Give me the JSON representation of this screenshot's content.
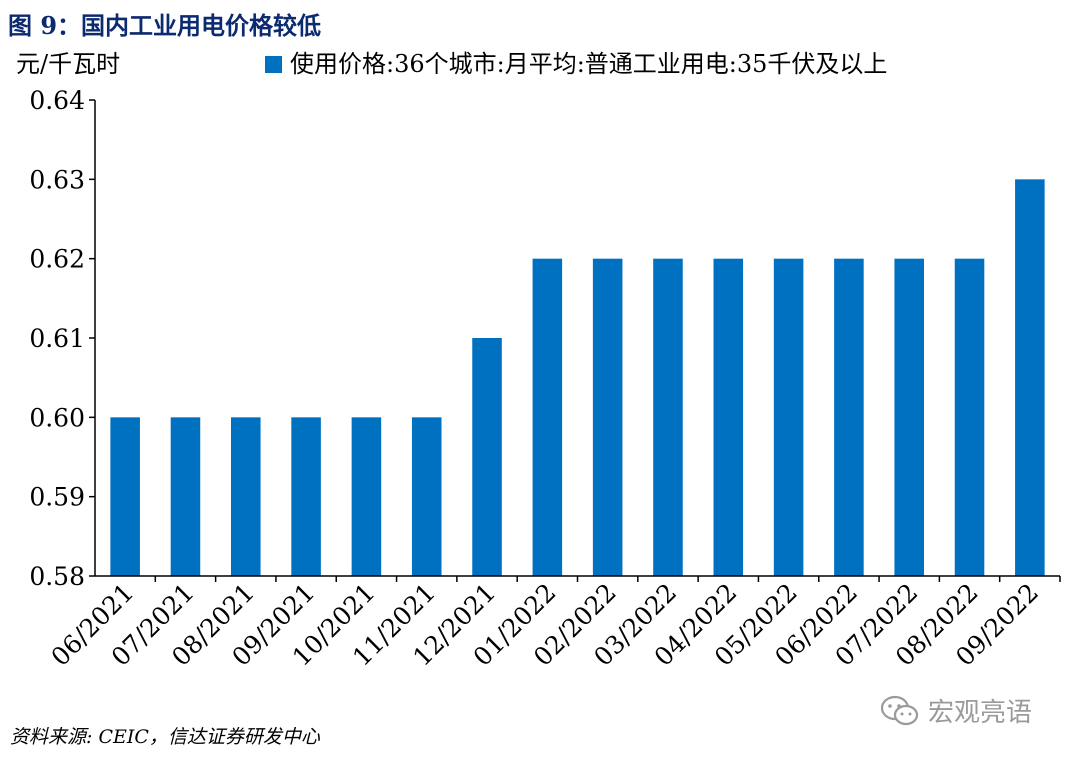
{
  "figure_title": "图 9：国内工业用电价格较低",
  "source": "资料来源: CEIC，信达证券研发中心",
  "watermark": "宏观亮语",
  "colors": {
    "bar": "#0070c0",
    "title": "#0b2a6f",
    "axis": "#000000"
  },
  "chart_data": {
    "type": "bar",
    "title": "",
    "ylabel": "元/千瓦时",
    "xlabel": "",
    "ylim": [
      0.58,
      0.64
    ],
    "yticks": [
      "0.58",
      "0.59",
      "0.60",
      "0.61",
      "0.62",
      "0.63",
      "0.64"
    ],
    "ytick_values": [
      0.58,
      0.59,
      0.6,
      0.61,
      0.62,
      0.63,
      0.64
    ],
    "categories": [
      "06/2021",
      "07/2021",
      "08/2021",
      "09/2021",
      "10/2021",
      "11/2021",
      "12/2021",
      "01/2022",
      "02/2022",
      "03/2022",
      "04/2022",
      "05/2022",
      "06/2022",
      "07/2022",
      "08/2022",
      "09/2022"
    ],
    "series": [
      {
        "name": "使用价格:36个城市:月平均:普通工业用电:35千伏及以上",
        "values": [
          0.6,
          0.6,
          0.6,
          0.6,
          0.6,
          0.6,
          0.61,
          0.62,
          0.62,
          0.62,
          0.62,
          0.62,
          0.62,
          0.62,
          0.62,
          0.63
        ]
      }
    ],
    "grid": false,
    "legend": "top"
  }
}
